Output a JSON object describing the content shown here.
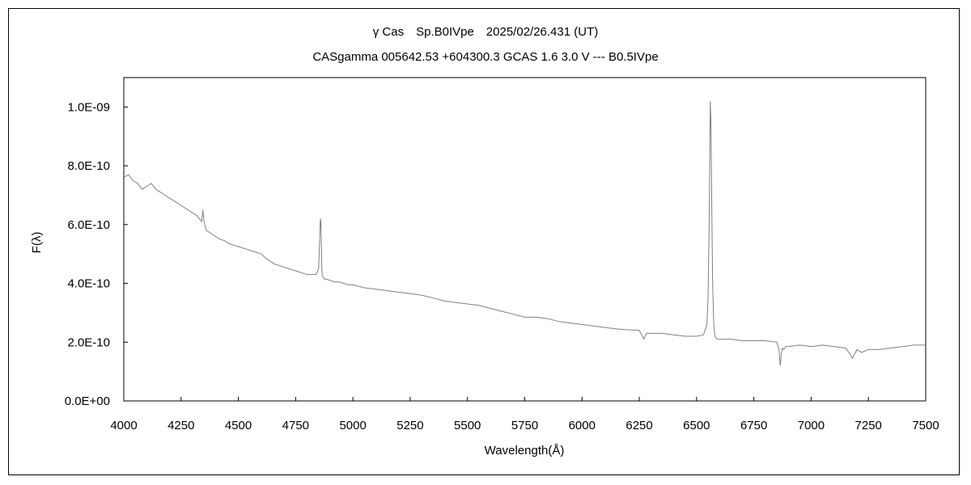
{
  "chart_data": {
    "type": "line",
    "title": "γ Cas　Sp.B0IVpe　2025/02/26.431 (UT)",
    "subtitle": "CASgamma 005642.53 +604300.3 GCAS 1.6 3.0 V --- B0.5IVpe",
    "xlabel": "Wavelength(Å)",
    "ylabel": "F(λ)",
    "xlim": [
      4000,
      7500
    ],
    "ylim": [
      0,
      1.1e-09
    ],
    "grid": false,
    "legend": "none",
    "line_color": "#808080",
    "x_ticks": [
      4000,
      4250,
      4500,
      4750,
      5000,
      5250,
      5500,
      5750,
      6000,
      6250,
      6500,
      6750,
      7000,
      7250,
      7500
    ],
    "x_tick_labels": [
      "4000",
      "4250",
      "4500",
      "4750",
      "5000",
      "5250",
      "5500",
      "5750",
      "6000",
      "6250",
      "6500",
      "6750",
      "7000",
      "7250",
      "7500"
    ],
    "y_ticks": [
      0,
      2e-10,
      4e-10,
      6e-10,
      8e-10,
      1e-09
    ],
    "y_tick_labels": [
      "0.0E+00",
      "2.0E-10",
      "4.0E-10",
      "6.0E-10",
      "8.0E-10",
      "1.0E-09"
    ],
    "series": [
      {
        "x": [
          4000,
          4020,
          4040,
          4060,
          4080,
          4100,
          4120,
          4140,
          4160,
          4180,
          4200,
          4220,
          4240,
          4260,
          4280,
          4300,
          4320,
          4340,
          4345,
          4350,
          4360,
          4380,
          4400,
          4420,
          4440,
          4460,
          4480,
          4500,
          4520,
          4540,
          4560,
          4580,
          4600,
          4620,
          4640,
          4660,
          4680,
          4700,
          4720,
          4740,
          4760,
          4780,
          4800,
          4820,
          4840,
          4850,
          4855,
          4858,
          4860,
          4861,
          4862,
          4864,
          4866,
          4870,
          4875,
          4880,
          4900,
          4920,
          4940,
          4960,
          4980,
          5000,
          5050,
          5100,
          5150,
          5200,
          5250,
          5300,
          5350,
          5400,
          5450,
          5500,
          5550,
          5600,
          5650,
          5700,
          5750,
          5800,
          5850,
          5900,
          5950,
          6000,
          6050,
          6100,
          6150,
          6200,
          6250,
          6270,
          6280,
          6300,
          6350,
          6400,
          6450,
          6500,
          6530,
          6545,
          6550,
          6555,
          6560,
          6563,
          6566,
          6570,
          6575,
          6580,
          6590,
          6600,
          6650,
          6700,
          6750,
          6800,
          6850,
          6860,
          6865,
          6870,
          6875,
          6880,
          6890,
          6900,
          6950,
          7000,
          7050,
          7100,
          7150,
          7170,
          7180,
          7190,
          7200,
          7220,
          7250,
          7300,
          7350,
          7400,
          7450,
          7500
        ],
        "y": [
          7.6e-10,
          7.7e-10,
          7.5e-10,
          7.4e-10,
          7.2e-10,
          7.3e-10,
          7.4e-10,
          7.2e-10,
          7.1e-10,
          7e-10,
          6.9e-10,
          6.8e-10,
          6.7e-10,
          6.6e-10,
          6.5e-10,
          6.4e-10,
          6.3e-10,
          6.1e-10,
          6.5e-10,
          6.1e-10,
          5.8e-10,
          5.7e-10,
          5.6e-10,
          5.5e-10,
          5.45e-10,
          5.35e-10,
          5.3e-10,
          5.25e-10,
          5.2e-10,
          5.15e-10,
          5.1e-10,
          5.05e-10,
          5e-10,
          4.85e-10,
          4.75e-10,
          4.65e-10,
          4.6e-10,
          4.55e-10,
          4.5e-10,
          4.45e-10,
          4.4e-10,
          4.35e-10,
          4.3e-10,
          4.3e-10,
          4.3e-10,
          4.5e-10,
          5.5e-10,
          6.2e-10,
          6.1e-10,
          5.9e-10,
          5.4e-10,
          4.6e-10,
          4.3e-10,
          4.2e-10,
          4.15e-10,
          4.15e-10,
          4.1e-10,
          4.05e-10,
          4.05e-10,
          4e-10,
          3.95e-10,
          3.95e-10,
          3.85e-10,
          3.8e-10,
          3.75e-10,
          3.7e-10,
          3.65e-10,
          3.6e-10,
          3.5e-10,
          3.4e-10,
          3.35e-10,
          3.3e-10,
          3.25e-10,
          3.15e-10,
          3.05e-10,
          2.95e-10,
          2.85e-10,
          2.85e-10,
          2.8e-10,
          2.7e-10,
          2.65e-10,
          2.6e-10,
          2.55e-10,
          2.5e-10,
          2.45e-10,
          2.42e-10,
          2.4e-10,
          2.1e-10,
          2.3e-10,
          2.3e-10,
          2.3e-10,
          2.25e-10,
          2.2e-10,
          2.2e-10,
          2.25e-10,
          2.6e-10,
          3.5e-10,
          6e-10,
          1.02e-09,
          9.4e-10,
          7e-10,
          4e-10,
          2.6e-10,
          2.2e-10,
          2.1e-10,
          2.1e-10,
          2.1e-10,
          2.05e-10,
          2.05e-10,
          2.05e-10,
          2e-10,
          1.75e-10,
          1.2e-10,
          1.6e-10,
          1.8e-10,
          1.75e-10,
          1.85e-10,
          1.85e-10,
          1.9e-10,
          1.85e-10,
          1.9e-10,
          1.85e-10,
          1.8e-10,
          1.6e-10,
          1.45e-10,
          1.6e-10,
          1.75e-10,
          1.65e-10,
          1.75e-10,
          1.75e-10,
          1.8e-10,
          1.85e-10,
          1.9e-10,
          1.9e-10
        ]
      }
    ]
  }
}
